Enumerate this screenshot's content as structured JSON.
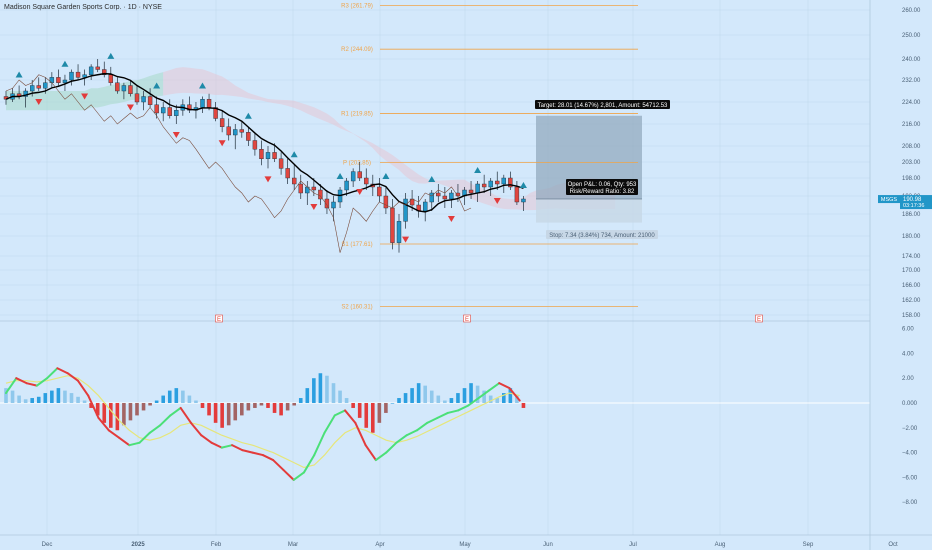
{
  "header": {
    "title": "Madison Square Garden Sports Corp. · 1D · NYSE"
  },
  "colors": {
    "background": "#d3e8fb",
    "up": "#2196c8",
    "down": "#e0463f",
    "pivot": "#f0a449",
    "cloud_green": "#a8d9c9",
    "cloud_red": "#e6c6d6",
    "target_zone": "#8fa6ba",
    "stop_zone": "#c7d7e6",
    "macd_green": "#4be078",
    "macd_red": "#e33b3b",
    "signal": "#e6e67a",
    "triangle_up": "#1f8aa8",
    "triangle_down": "#e23b3b"
  },
  "chart_data": {
    "type": "candlestick",
    "price_axis": {
      "ticks": [
        "260.00",
        "250.00",
        "240.00",
        "232.00",
        "224.00",
        "216.00",
        "208.00",
        "203.00",
        "198.00",
        "192.00",
        "186.00",
        "180.00",
        "174.00",
        "170.00",
        "166.00",
        "162.00",
        "158.00"
      ],
      "last_price_label": "190.98",
      "last_price_sub": "03:17:36",
      "last_price_value": 190.98,
      "symbol_tag": "MSGS"
    },
    "time_axis": {
      "labels": [
        "Dec",
        "2025",
        "Feb",
        "Mar",
        "Apr",
        "May",
        "Jun",
        "Jul",
        "Aug",
        "Sep",
        "Oct"
      ]
    },
    "pivots": [
      {
        "label": "R3 (261.79)",
        "value": 261.79
      },
      {
        "label": "R2 (244.09)",
        "value": 244.09
      },
      {
        "label": "R1 (219.85)",
        "value": 219.85
      },
      {
        "label": "P (202.85)",
        "value": 202.85
      },
      {
        "label": "S1 (177.61)",
        "value": 177.61
      },
      {
        "label": "S2 (160.31)",
        "value": 160.31
      }
    ],
    "position": {
      "target_label": "Target: 28.01 (14.67%) 2,801, Amount: 54712.53",
      "open_pnl_label": "Open P&L: 0.06, Qty: 953",
      "risk_reward_label": "Risk/Reward Ratio: 3.82",
      "stop_label": "Stop: 7.34 (3.84%) 734, Amount: 21000",
      "entry": 191.0,
      "target": 219.0,
      "stop": 183.66
    },
    "earnings_markers": [
      "E",
      "E",
      "E"
    ],
    "macd_axis": {
      "ticks": [
        "6.00",
        "4.00",
        "2.00",
        "0.000",
        "−2.00",
        "−4.00",
        "−6.00",
        "−8.00"
      ]
    },
    "candles": [
      [
        226,
        228,
        223,
        225
      ],
      [
        225,
        229,
        224,
        227
      ],
      [
        227,
        230,
        225,
        226
      ],
      [
        226,
        229,
        222,
        228
      ],
      [
        228,
        232,
        226,
        230
      ],
      [
        230,
        233,
        228,
        229
      ],
      [
        229,
        233,
        227,
        231
      ],
      [
        231,
        235,
        229,
        233
      ],
      [
        233,
        236,
        230,
        231
      ],
      [
        231,
        234,
        228,
        232
      ],
      [
        232,
        236,
        230,
        235
      ],
      [
        235,
        238,
        232,
        233
      ],
      [
        233,
        236,
        230,
        234
      ],
      [
        234,
        238,
        232,
        237
      ],
      [
        237,
        240,
        235,
        236
      ],
      [
        236,
        239,
        233,
        234
      ],
      [
        234,
        237,
        230,
        231
      ],
      [
        231,
        233,
        227,
        228
      ],
      [
        228,
        231,
        225,
        230
      ],
      [
        230,
        232,
        226,
        227
      ],
      [
        227,
        230,
        223,
        224
      ],
      [
        224,
        228,
        221,
        226
      ],
      [
        226,
        229,
        222,
        223
      ],
      [
        223,
        226,
        218,
        220
      ],
      [
        220,
        224,
        217,
        222
      ],
      [
        222,
        225,
        218,
        219
      ],
      [
        219,
        223,
        216,
        221
      ],
      [
        221,
        225,
        219,
        223
      ],
      [
        223,
        226,
        220,
        221
      ],
      [
        221,
        224,
        218,
        222
      ],
      [
        222,
        226,
        220,
        225
      ],
      [
        225,
        227,
        221,
        222
      ],
      [
        222,
        224,
        217,
        218
      ],
      [
        218,
        221,
        213,
        215
      ],
      [
        215,
        218,
        210,
        212
      ],
      [
        212,
        216,
        207,
        214
      ],
      [
        214,
        217,
        211,
        213
      ],
      [
        213,
        215,
        208,
        210
      ],
      [
        210,
        213,
        205,
        207
      ],
      [
        207,
        210,
        202,
        204
      ],
      [
        204,
        208,
        201,
        206
      ],
      [
        206,
        209,
        203,
        204
      ],
      [
        204,
        206,
        199,
        201
      ],
      [
        201,
        204,
        196,
        198
      ],
      [
        198,
        202,
        194,
        196
      ],
      [
        196,
        199,
        191,
        193
      ],
      [
        193,
        197,
        189,
        195
      ],
      [
        195,
        198,
        192,
        194
      ],
      [
        194,
        196,
        189,
        191
      ],
      [
        191,
        194,
        186,
        188
      ],
      [
        188,
        192,
        184,
        190
      ],
      [
        190,
        195,
        188,
        194
      ],
      [
        194,
        198,
        192,
        197
      ],
      [
        197,
        201,
        195,
        200
      ],
      [
        200,
        203,
        197,
        198
      ],
      [
        198,
        201,
        194,
        196
      ],
      [
        196,
        199,
        192,
        195
      ],
      [
        195,
        198,
        190,
        192
      ],
      [
        192,
        195,
        186,
        188
      ],
      [
        188,
        191,
        176,
        178
      ],
      [
        178,
        186,
        175,
        184
      ],
      [
        184,
        193,
        182,
        191
      ],
      [
        191,
        194,
        187,
        189
      ],
      [
        189,
        192,
        185,
        187
      ],
      [
        187,
        191,
        184,
        190
      ],
      [
        190,
        194,
        187,
        193
      ],
      [
        193,
        196,
        190,
        192
      ],
      [
        192,
        195,
        188,
        191
      ],
      [
        191,
        194,
        188,
        193
      ],
      [
        193,
        196,
        190,
        192
      ],
      [
        192,
        195,
        189,
        194
      ],
      [
        194,
        197,
        191,
        193
      ],
      [
        193,
        197,
        190,
        196
      ],
      [
        196,
        199,
        193,
        195
      ],
      [
        195,
        198,
        192,
        197
      ],
      [
        197,
        200,
        194,
        196
      ],
      [
        196,
        199,
        193,
        198
      ],
      [
        198,
        200,
        194,
        195
      ],
      [
        195,
        197,
        189,
        190
      ],
      [
        190,
        192,
        187,
        191
      ]
    ],
    "macd": [
      1.2,
      1.0,
      0.6,
      0.3,
      0.4,
      0.5,
      0.8,
      1.0,
      1.2,
      1.0,
      0.8,
      0.5,
      0.2,
      -0.4,
      -1.0,
      -1.6,
      -2.0,
      -2.2,
      -1.8,
      -1.4,
      -1.0,
      -0.6,
      -0.2,
      0.2,
      0.6,
      1.0,
      1.2,
      1.0,
      0.6,
      0.2,
      -0.4,
      -1.0,
      -1.6,
      -2.0,
      -1.8,
      -1.4,
      -1.0,
      -0.6,
      -0.4,
      -0.2,
      -0.4,
      -0.8,
      -1.0,
      -0.6,
      -0.2,
      0.4,
      1.2,
      2.0,
      2.4,
      2.2,
      1.6,
      1.0,
      0.4,
      -0.4,
      -1.2,
      -2.0,
      -2.4,
      -1.6,
      -0.8,
      0.0,
      0.4,
      0.8,
      1.2,
      1.6,
      1.4,
      1.0,
      0.6,
      0.2,
      0.4,
      0.8,
      1.2,
      1.6,
      1.4,
      1.0,
      0.6,
      0.4,
      0.8,
      1.2,
      0.6,
      -0.4
    ],
    "macd_line": [
      0.8,
      2.0,
      1.6,
      1.4,
      2.0,
      2.8,
      2.4,
      1.8,
      0.6,
      -1.2,
      -2.2,
      -2.8,
      -3.4,
      -3.2,
      -2.4,
      -1.8,
      -1.0,
      -0.4,
      -1.6,
      -2.6,
      -3.2,
      -3.6,
      -3.4,
      -3.8,
      -4.0,
      -4.2,
      -4.6,
      -5.4,
      -6.2,
      -5.6,
      -4.2,
      -2.4,
      -1.0,
      -0.6,
      -1.6,
      -3.4,
      -4.6,
      -4.0,
      -3.2,
      -2.6,
      -2.2,
      -1.6,
      -1.2,
      -0.8,
      -0.6,
      -0.2,
      0.4,
      1.0,
      1.6,
      1.2,
      0.2
    ],
    "signal_line": [
      1.6,
      1.8,
      1.8,
      1.7,
      1.8,
      2.0,
      2.2,
      2.0,
      1.4,
      0.6,
      -0.4,
      -1.4,
      -2.2,
      -2.8,
      -3.0,
      -2.8,
      -2.4,
      -1.8,
      -1.6,
      -1.8,
      -2.2,
      -2.6,
      -2.9,
      -3.2,
      -3.4,
      -3.7,
      -4.0,
      -4.4,
      -4.8,
      -5.2,
      -5.0,
      -4.2,
      -3.2,
      -2.4,
      -2.0,
      -2.2,
      -2.6,
      -3.0,
      -3.2,
      -3.0,
      -2.7,
      -2.3,
      -1.9,
      -1.5,
      -1.1,
      -0.7,
      -0.3,
      0.1,
      0.5,
      0.8,
      0.6
    ]
  }
}
